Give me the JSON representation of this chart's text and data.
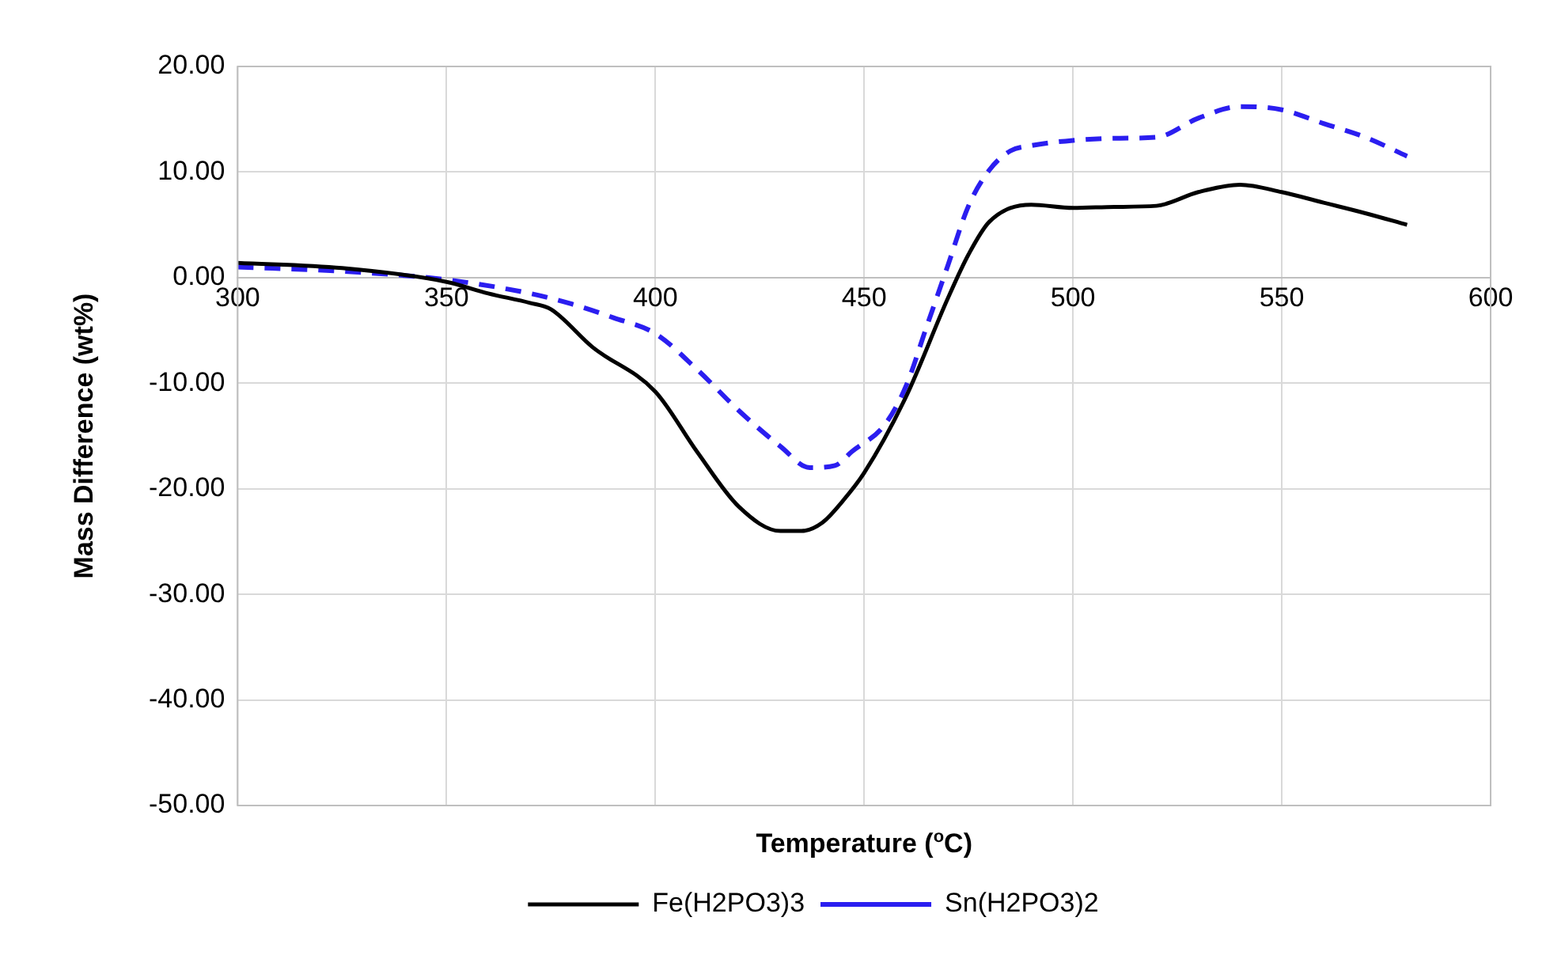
{
  "chart_data": {
    "type": "line",
    "xlabel": "Temperature ($^{o}$C)",
    "ylabel": "Mass Difference (wt%)",
    "xlim": [
      300,
      600
    ],
    "xticks": [
      300,
      350,
      400,
      450,
      500,
      550,
      600
    ],
    "ylim": [
      -50,
      20
    ],
    "yticks": [
      {
        "value": -50,
        "label": "-50.00"
      },
      {
        "value": -40,
        "label": "-40.00"
      },
      {
        "value": -30,
        "label": "-30.00"
      },
      {
        "value": -20,
        "label": "-20.00"
      },
      {
        "value": -10,
        "label": "-10.00"
      },
      {
        "value": 0,
        "label": "0.00"
      },
      {
        "value": 10,
        "label": "10.00"
      },
      {
        "value": 20,
        "label": "20.00"
      }
    ],
    "grid": true,
    "legend": "bottom",
    "marker": "none",
    "series": [
      {
        "name": "Fe(H2PO3)3",
        "color": "#000000",
        "line_style": "solid",
        "x": [
          300,
          325,
          350,
          360,
          370,
          375,
          385,
          400,
          410,
          420,
          430,
          435,
          440,
          445,
          450,
          460,
          470,
          475,
          480,
          490,
          500,
          510,
          520,
          530,
          540,
          550,
          560,
          570,
          580
        ],
        "values": [
          1.4,
          0.9,
          -0.4,
          -1.5,
          -2.4,
          -3.0,
          -6.6,
          -10.8,
          -16.5,
          -21.7,
          -24.0,
          -24.0,
          -23.2,
          -21.1,
          -18.5,
          -11.3,
          -2.0,
          2.2,
          5.3,
          6.9,
          6.6,
          6.7,
          6.8,
          8.1,
          8.8,
          8.1,
          7.1,
          6.1,
          5.0
        ]
      },
      {
        "name": "Sn(H2PO3)2",
        "color": "#2b1ef0",
        "line_style": "dashed",
        "x": [
          300,
          325,
          350,
          370,
          380,
          390,
          400,
          410,
          420,
          430,
          437,
          443,
          447,
          455,
          460,
          465,
          470,
          475,
          480,
          485,
          490,
          500,
          510,
          520,
          530,
          540,
          550,
          560,
          570,
          580
        ],
        "values": [
          1.0,
          0.6,
          -0.2,
          -1.5,
          -2.5,
          -3.8,
          -5.3,
          -8.7,
          -12.6,
          -16.0,
          -18.0,
          -17.8,
          -16.5,
          -13.9,
          -10.3,
          -4.6,
          1.1,
          6.8,
          10.2,
          12.0,
          12.5,
          13.0,
          13.2,
          13.3,
          15.1,
          16.2,
          15.9,
          14.6,
          13.3,
          11.5
        ]
      }
    ]
  }
}
